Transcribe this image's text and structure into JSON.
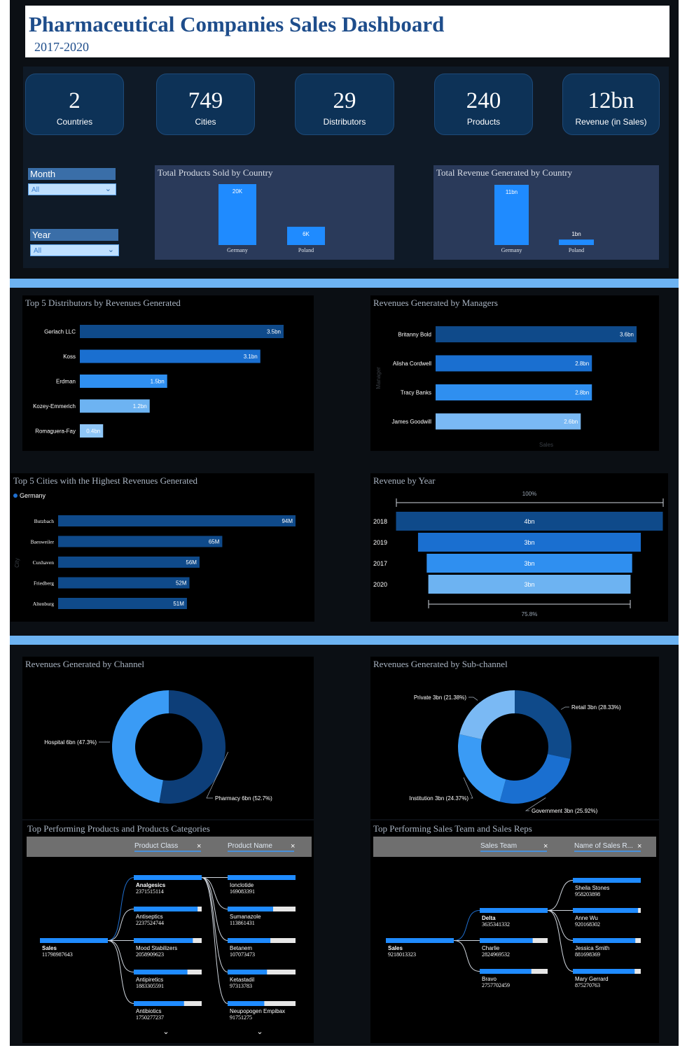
{
  "header": {
    "title": "Pharmaceutical Companies Sales Dashboard",
    "subtitle": "2017-2020"
  },
  "kpis": [
    {
      "value": "2",
      "label": "Countries"
    },
    {
      "value": "749",
      "label": "Cities"
    },
    {
      "value": "29",
      "label": "Distributors"
    },
    {
      "value": "240",
      "label": "Products"
    },
    {
      "value": "12bn",
      "label": "Revenue (in Sales)"
    }
  ],
  "filters": {
    "month": {
      "label": "Month",
      "value": "All"
    },
    "year": {
      "label": "Year",
      "value": "All"
    }
  },
  "colors": {
    "dark_blue": "#0f4a8a",
    "mid_blue": "#1a73d9",
    "light_blue": "#6db3f2",
    "bright_blue": "#1f8bff",
    "separator": "#6db3f2"
  },
  "chart_data": [
    {
      "id": "products_by_country",
      "type": "bar",
      "title": "Total Products Sold by Country",
      "categories": [
        "Germany",
        "Poland"
      ],
      "values": [
        20000,
        6000
      ],
      "labels": [
        "20K",
        "6K"
      ]
    },
    {
      "id": "revenue_by_country",
      "type": "bar",
      "title": "Total Revenue Generated by Country",
      "categories": [
        "Germany",
        "Poland"
      ],
      "values": [
        11,
        1
      ],
      "labels": [
        "11bn",
        "1bn"
      ]
    },
    {
      "id": "top_distributors",
      "type": "bar",
      "title": "Top 5 Distributors by Revenues Generated",
      "categories": [
        "Gerlach LLC",
        "Koss",
        "Erdman",
        "Kozey-Emmerich",
        "Romaguera-Fay"
      ],
      "values": [
        3.5,
        3.1,
        1.5,
        1.2,
        0.4
      ],
      "labels": [
        "3.5bn",
        "3.1bn",
        "1.5bn",
        "1.2bn",
        "0.4bn"
      ]
    },
    {
      "id": "revenue_by_manager",
      "type": "bar",
      "title": "Revenues Generated by Managers",
      "categories": [
        "Britanny Bold",
        "Alisha Cordwell",
        "Tracy Banks",
        "James Goodwill"
      ],
      "values": [
        3.6,
        2.8,
        2.8,
        2.6
      ],
      "labels": [
        "3.6bn",
        "2.8bn",
        "2.8bn",
        "2.6bn"
      ],
      "xlabel": "Sales",
      "ylabel": "Manager"
    },
    {
      "id": "top_cities",
      "type": "bar",
      "title": "Top 5 Cities with the Highest Revenues Generated",
      "legend": "Germany",
      "categories": [
        "Butzbach",
        "Baesweiler",
        "Cuxhaven",
        "Friedberg",
        "Altenburg"
      ],
      "values": [
        94,
        65,
        56,
        52,
        51
      ],
      "labels": [
        "94M",
        "65M",
        "56M",
        "52M",
        "51M"
      ],
      "ylabel": "City"
    },
    {
      "id": "revenue_by_year",
      "type": "bar",
      "title": "Revenue by Year",
      "categories": [
        "2018",
        "2019",
        "2017",
        "2020"
      ],
      "values": [
        4,
        3,
        3,
        3
      ],
      "labels": [
        "4bn",
        "3bn",
        "3bn",
        "3bn"
      ],
      "top_annotation": "100%",
      "bottom_annotation": "75.8%"
    },
    {
      "id": "revenue_by_channel",
      "type": "pie",
      "title": "Revenues Generated by Channel",
      "categories": [
        "Pharmacy",
        "Hospital"
      ],
      "values": [
        52.7,
        47.3
      ],
      "labels": [
        "Pharmacy 6bn (52.7%)",
        "Hospital 6bn (47.3%)"
      ]
    },
    {
      "id": "revenue_by_subchannel",
      "type": "pie",
      "title": "Revenues Generated by Sub-channel",
      "categories": [
        "Retail",
        "Government",
        "Institution",
        "Private"
      ],
      "values": [
        28.33,
        25.92,
        24.37,
        21.38
      ],
      "labels": [
        "Retail 3bn (28.33%)",
        "Government 3bn (25.92%)",
        "Institution 3bn (24.37%)",
        "Private 3bn (21.38%)"
      ]
    }
  ],
  "decomp_products": {
    "title": "Top Performing Products and Products Categories",
    "field1": "Product Class",
    "field2": "Product Name",
    "root": {
      "name": "Sales",
      "value": "11798987643"
    },
    "level1": [
      {
        "name": "Analgesics",
        "value": "2371515114",
        "fill": 1.0
      },
      {
        "name": "Antiseptics",
        "value": "2237524744",
        "fill": 0.94
      },
      {
        "name": "Mood Stabilizers",
        "value": "2058909623",
        "fill": 0.87
      },
      {
        "name": "Antipiretics",
        "value": "1883305591",
        "fill": 0.79
      },
      {
        "name": "Antibiotics",
        "value": "1750277237",
        "fill": 0.74
      }
    ],
    "level2": [
      {
        "name": "Ionclotide",
        "value": "169083391",
        "fill": 1.0
      },
      {
        "name": "Sumanazole",
        "value": "113861431",
        "fill": 0.67
      },
      {
        "name": "Betanem",
        "value": "107073473",
        "fill": 0.63
      },
      {
        "name": "Ketastadil",
        "value": "97313783",
        "fill": 0.58
      },
      {
        "name": "Neupopogen Empibax",
        "value": "91751275",
        "fill": 0.54
      }
    ]
  },
  "decomp_sales": {
    "title": "Top Performing Sales Team and Sales Reps",
    "field1": "Sales Team",
    "field2": "Name of Sales R...",
    "root": {
      "name": "Sales",
      "value": "9218013323"
    },
    "level1": [
      {
        "name": "Delta",
        "value": "3635341332",
        "fill": 1.0
      },
      {
        "name": "Charlie",
        "value": "2824969532",
        "fill": 0.78
      },
      {
        "name": "Bravo",
        "value": "2757702459",
        "fill": 0.76
      }
    ],
    "level2": [
      {
        "name": "Sheila Stones",
        "value": "958203898",
        "fill": 1.0
      },
      {
        "name": "Anne Wu",
        "value": "920168302",
        "fill": 0.96
      },
      {
        "name": "Jessica Smith",
        "value": "881698369",
        "fill": 0.92
      },
      {
        "name": "Mary Gerrard",
        "value": "875270763",
        "fill": 0.91
      }
    ]
  }
}
